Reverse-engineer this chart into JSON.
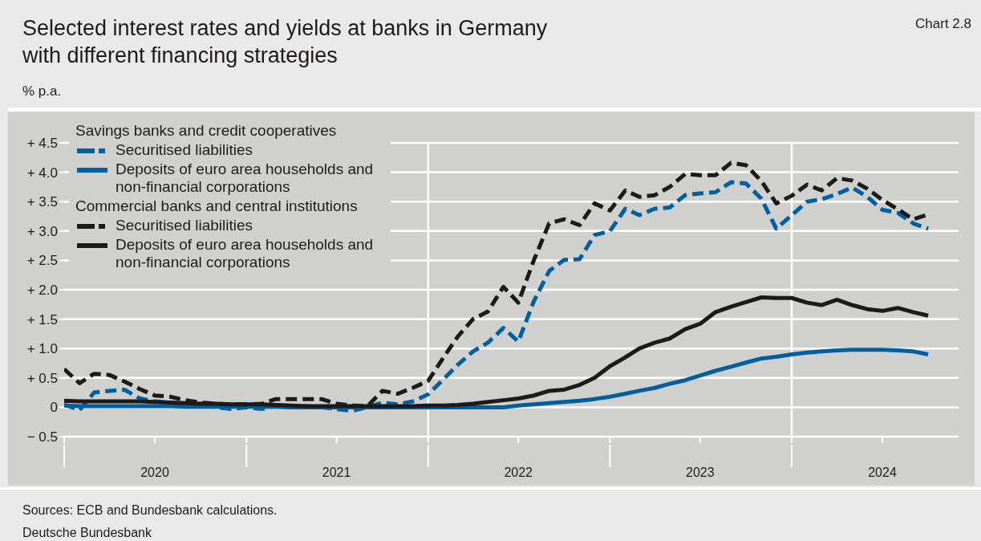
{
  "chart_data": {
    "type": "line",
    "title": "Selected interest rates and yields at banks in Germany\nwith different financing strategies",
    "ylabel": "% p.a.",
    "annotations": [
      "Chart 2.8",
      "Savings banks and credit cooperatives",
      "Commercial banks and central institutions",
      "Sources: ECB and Bundesbank calculations.",
      "Deutsche Bundesbank"
    ],
    "x": [
      "2020-01",
      "2020-02",
      "2020-03",
      "2020-04",
      "2020-05",
      "2020-06",
      "2020-07",
      "2020-08",
      "2020-09",
      "2020-10",
      "2020-11",
      "2020-12",
      "2021-01",
      "2021-02",
      "2021-03",
      "2021-04",
      "2021-05",
      "2021-06",
      "2021-07",
      "2021-08",
      "2021-09",
      "2021-10",
      "2021-11",
      "2021-12",
      "2022-01",
      "2022-02",
      "2022-03",
      "2022-04",
      "2022-05",
      "2022-06",
      "2022-07",
      "2022-08",
      "2022-09",
      "2022-10",
      "2022-11",
      "2022-12",
      "2023-01",
      "2023-02",
      "2023-03",
      "2023-04",
      "2023-05",
      "2023-06",
      "2023-07",
      "2023-08",
      "2023-09",
      "2023-10",
      "2023-11",
      "2023-12",
      "2024-01",
      "2024-02",
      "2024-03",
      "2024-04",
      "2024-05",
      "2024-06",
      "2024-07",
      "2024-08",
      "2024-09",
      "2024-10"
    ],
    "series": [
      {
        "name": "Securitised liabilities",
        "color": "#005f9e",
        "line_style": "dashed",
        "values": [
          0.05,
          -0.05,
          0.25,
          0.28,
          0.3,
          0.15,
          0.1,
          0.08,
          0.06,
          0.04,
          0.0,
          -0.03,
          0.0,
          -0.03,
          0.03,
          0.02,
          0.02,
          0.0,
          -0.03,
          -0.06,
          0.0,
          0.08,
          0.05,
          0.1,
          0.22,
          0.48,
          0.72,
          0.95,
          1.1,
          1.35,
          1.12,
          1.8,
          2.32,
          2.51,
          2.52,
          2.93,
          3.0,
          3.38,
          3.27,
          3.38,
          3.4,
          3.61,
          3.64,
          3.66,
          3.83,
          3.81,
          3.55,
          3.04,
          3.27,
          3.5,
          3.54,
          3.63,
          3.74,
          3.58,
          3.36,
          3.31,
          3.13,
          3.04
        ]
      },
      {
        "name": "Deposits of euro area households and non-financial corporations",
        "color": "#005f9e",
        "line_style": "solid",
        "values": [
          0.03,
          0.02,
          0.02,
          0.02,
          0.02,
          0.02,
          0.02,
          0.02,
          0.01,
          0.01,
          0.01,
          0.01,
          0.01,
          0.01,
          0.01,
          0.0,
          0.0,
          0.0,
          0.0,
          0.0,
          0.0,
          0.0,
          0.0,
          0.0,
          0.0,
          0.0,
          0.0,
          0.0,
          0.0,
          0.0,
          0.03,
          0.05,
          0.07,
          0.09,
          0.11,
          0.14,
          0.18,
          0.23,
          0.28,
          0.33,
          0.4,
          0.46,
          0.54,
          0.62,
          0.69,
          0.76,
          0.83,
          0.86,
          0.9,
          0.93,
          0.95,
          0.97,
          0.98,
          0.98,
          0.98,
          0.97,
          0.95,
          0.9
        ]
      },
      {
        "name": "Securitised liabilities",
        "color": "#1d1b1a",
        "line_style": "dashed",
        "values": [
          0.65,
          0.41,
          0.57,
          0.55,
          0.44,
          0.31,
          0.2,
          0.18,
          0.12,
          0.08,
          0.06,
          0.05,
          0.05,
          0.06,
          0.14,
          0.14,
          0.14,
          0.14,
          0.06,
          0.03,
          0.02,
          0.28,
          0.23,
          0.33,
          0.45,
          0.85,
          1.2,
          1.5,
          1.63,
          2.05,
          1.78,
          2.5,
          3.13,
          3.2,
          3.1,
          3.47,
          3.35,
          3.69,
          3.58,
          3.61,
          3.75,
          3.97,
          3.95,
          3.95,
          4.16,
          4.12,
          3.85,
          3.47,
          3.6,
          3.79,
          3.69,
          3.9,
          3.86,
          3.72,
          3.53,
          3.37,
          3.2,
          3.28
        ]
      },
      {
        "name": "Deposits of euro area households and non-financial corporations",
        "color": "#1d1b1a",
        "line_style": "solid",
        "values": [
          0.11,
          0.1,
          0.1,
          0.1,
          0.1,
          0.1,
          0.09,
          0.08,
          0.07,
          0.06,
          0.06,
          0.05,
          0.05,
          0.05,
          0.04,
          0.03,
          0.02,
          0.02,
          0.02,
          0.02,
          0.02,
          0.02,
          0.02,
          0.02,
          0.03,
          0.03,
          0.04,
          0.06,
          0.09,
          0.12,
          0.15,
          0.2,
          0.28,
          0.3,
          0.38,
          0.5,
          0.7,
          0.85,
          1.0,
          1.1,
          1.17,
          1.33,
          1.42,
          1.62,
          1.71,
          1.79,
          1.87,
          1.86,
          1.86,
          1.78,
          1.74,
          1.83,
          1.74,
          1.67,
          1.64,
          1.69,
          1.62,
          1.56
        ]
      }
    ],
    "xlim": [
      "2020-01-01",
      "2024-12-01"
    ],
    "xticks": [
      {
        "value": "2020-01-01",
        "label": null
      },
      {
        "value": "2020-07-01",
        "label": "2020"
      },
      {
        "value": "2021-01-01",
        "label": null
      },
      {
        "value": "2021-07-01",
        "label": "2021"
      },
      {
        "value": "2022-01-01",
        "label": null
      },
      {
        "value": "2022-07-01",
        "label": "2022"
      },
      {
        "value": "2023-01-01",
        "label": null
      },
      {
        "value": "2023-07-01",
        "label": "2023"
      },
      {
        "value": "2024-01-01",
        "label": null
      },
      {
        "value": "2024-07-01",
        "label": "2024"
      }
    ],
    "ylim": [
      -0.5,
      4.5
    ],
    "yticks": [
      {
        "value": -0.5,
        "label": "− 0.5"
      },
      0,
      {
        "value": 0.5,
        "label": "+ 0.5"
      },
      {
        "value": 1,
        "label": "+ 1.0"
      },
      {
        "value": 1.5,
        "label": "+ 1.5"
      },
      {
        "value": 2,
        "label": "+ 2.0"
      },
      {
        "value": 2.5,
        "label": "+ 2.5"
      },
      {
        "value": 3,
        "label": "+ 3.0"
      },
      {
        "value": 3.5,
        "label": "+ 3.5"
      },
      {
        "value": 4,
        "label": "+ 4.0"
      },
      {
        "value": 4.5,
        "label": "+ 4.5"
      }
    ],
    "ref_lines": [
      {
        "axis": "x",
        "value": "2022-01-01",
        "color": "#ffffff"
      },
      {
        "axis": "x",
        "value": "2024-01-01",
        "color": "#ffffff"
      }
    ],
    "grid": "y",
    "legend": "top left",
    "marker": "none"
  }
}
